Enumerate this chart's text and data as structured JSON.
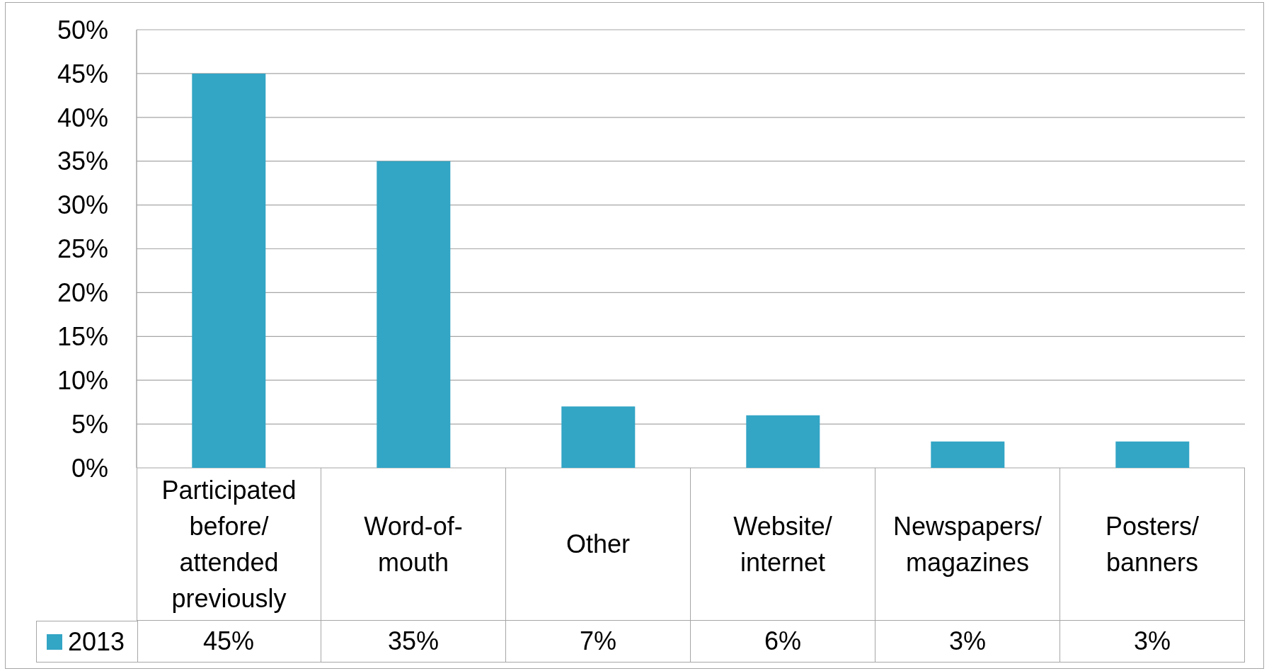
{
  "chart_data": {
    "type": "bar",
    "categories": [
      "Participated before/attended previously",
      "Word-of-mouth",
      "Other",
      "Website/internet",
      "Newspapers/magazines",
      "Posters/banners"
    ],
    "series": [
      {
        "name": "2013",
        "color": "#33a5c5",
        "values": [
          45,
          35,
          7,
          6,
          3,
          3
        ],
        "value_labels": [
          "45%",
          "35%",
          "7%",
          "6%",
          "3%",
          "3%"
        ]
      }
    ],
    "ylim": [
      0,
      50
    ],
    "yticks": [
      {
        "value": 0,
        "label": "0%"
      },
      {
        "value": 5,
        "label": "5%"
      },
      {
        "value": 10,
        "label": "10%"
      },
      {
        "value": 15,
        "label": "15%"
      },
      {
        "value": 20,
        "label": "20%"
      },
      {
        "value": 25,
        "label": "25%"
      },
      {
        "value": 30,
        "label": "30%"
      },
      {
        "value": 35,
        "label": "35%"
      },
      {
        "value": 40,
        "label": "40%"
      },
      {
        "value": 45,
        "label": "45%"
      },
      {
        "value": 50,
        "label": "50%"
      }
    ],
    "grid": "y",
    "legend": "bottom left"
  }
}
